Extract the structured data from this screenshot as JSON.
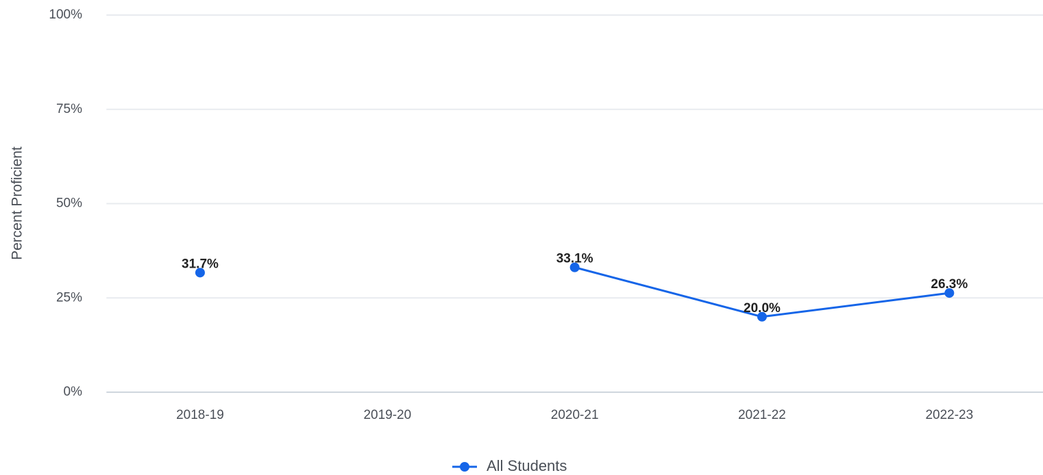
{
  "chart_data": {
    "type": "line",
    "y_axis_label": "Percent Proficient",
    "categories": [
      "2018-19",
      "2019-20",
      "2020-21",
      "2021-22",
      "2022-23"
    ],
    "series": [
      {
        "name": "All Students",
        "color": "#1565e8",
        "values": [
          31.7,
          null,
          33.1,
          20.0,
          26.3
        ],
        "value_labels": [
          "31.7%",
          null,
          "33.1%",
          "20.0%",
          "26.3%"
        ]
      }
    ],
    "ylim": [
      0,
      100
    ],
    "yticks": [
      {
        "value": 0,
        "label": "0%"
      },
      {
        "value": 25,
        "label": "25%"
      },
      {
        "value": 50,
        "label": "50%"
      },
      {
        "value": 75,
        "label": "75%"
      },
      {
        "value": 100,
        "label": "100%"
      }
    ],
    "grid": true,
    "legend": "bottom"
  }
}
